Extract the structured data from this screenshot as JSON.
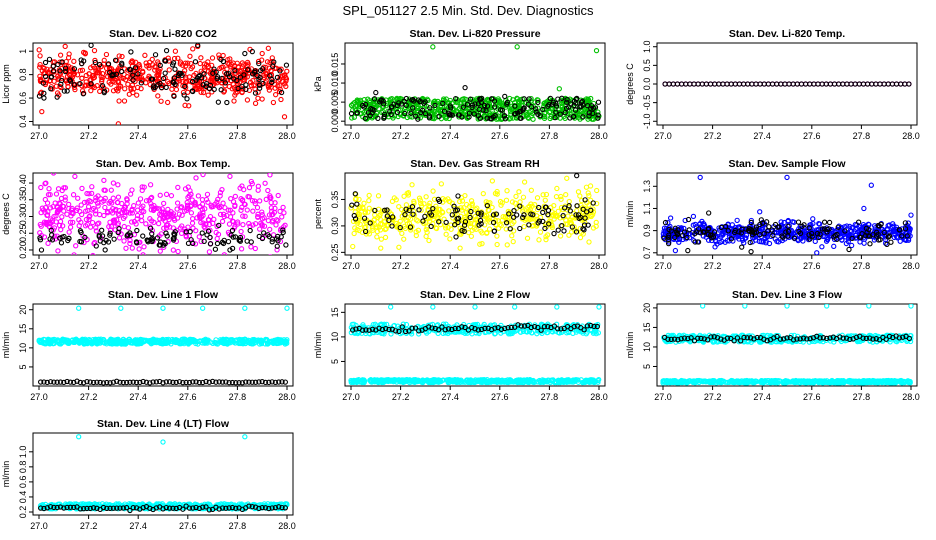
{
  "figure": {
    "title": "SPL_051127  2.5 Min. Std. Dev. Diagnostics"
  },
  "chart_data": [
    {
      "id": "co2",
      "type": "scatter",
      "title": "Stan. Dev. Li-820 CO2",
      "ylabel": "Licor ppm",
      "xlabel": "",
      "xlim": [
        27.0,
        28.0
      ],
      "ylim": [
        0.37,
        1.07
      ],
      "xticks": [
        27.0,
        27.2,
        27.4,
        27.6,
        27.8,
        28.0
      ],
      "yticks": [
        0.4,
        0.6,
        0.8,
        1.0
      ],
      "series": [
        {
          "color": "#ff0000",
          "pattern": "noisy",
          "n": 560,
          "mean": 0.78,
          "spread": 0.085,
          "outliers": [
            [
              27.32,
              0.38
            ],
            [
              27.62,
              1.02
            ],
            [
              27.64,
              1.04
            ],
            [
              27.99,
              0.44
            ],
            [
              27.18,
              0.99
            ],
            [
              27.55,
              1.0
            ],
            [
              27.9,
              0.98
            ]
          ]
        },
        {
          "color": "#000000",
          "pattern": "noisy",
          "n": 150,
          "mean": 0.78,
          "spread": 0.09,
          "outliers": [
            [
              27.21,
              1.05
            ],
            [
              27.64,
              1.05
            ],
            [
              27.47,
              0.97
            ],
            [
              27.83,
              0.98
            ],
            [
              27.02,
              0.6
            ]
          ]
        }
      ]
    },
    {
      "id": "pressure",
      "type": "scatter",
      "title": "Stan. Dev. Li-820 Pressure",
      "ylabel": "kPa",
      "xlabel": "",
      "xlim": [
        27.0,
        28.0
      ],
      "ylim": [
        -0.001,
        0.0205
      ],
      "xticks": [
        27.0,
        27.2,
        27.4,
        27.6,
        27.8,
        28.0
      ],
      "yticks": [
        "0.000",
        "0.005",
        "0.010",
        "0.015"
      ],
      "series": [
        {
          "color": "#00c000",
          "pattern": "band",
          "n": 600,
          "low": 0.0005,
          "high": 0.006,
          "outliers": [
            [
              27.33,
              0.0195
            ],
            [
              27.67,
              0.0195
            ],
            [
              27.99,
              0.0185
            ],
            [
              27.84,
              0.0085
            ]
          ]
        },
        {
          "color": "#000000",
          "pattern": "band",
          "n": 170,
          "low": 0.0005,
          "high": 0.006,
          "outliers": [
            [
              27.1,
              0.0075
            ],
            [
              27.46,
              0.0088
            ],
            [
              27.62,
              0.0065
            ],
            [
              27.85,
              0.006
            ]
          ]
        }
      ]
    },
    {
      "id": "temp",
      "type": "scatter",
      "title": "Stan. Dev. Li-820 Temp.",
      "ylabel": "degrees C",
      "xlabel": "",
      "xlim": [
        27.0,
        28.0
      ],
      "ylim": [
        -1.1,
        1.1
      ],
      "xticks": [
        27.0,
        27.2,
        27.4,
        27.6,
        27.8,
        28.0
      ],
      "yticks": [
        "-1.0",
        "-0.5",
        "0.0",
        "0.5",
        "1.0"
      ],
      "series": [
        {
          "color": "#ff00ff",
          "pattern": "constant",
          "n": 60,
          "value": 0.0,
          "outliers": []
        },
        {
          "color": "#000000",
          "pattern": "constant",
          "n": 60,
          "value": 0.0,
          "outliers": []
        }
      ]
    },
    {
      "id": "ambbox",
      "type": "scatter",
      "title": "Stan. Dev. Amb. Box Temp.",
      "ylabel": "degrees C",
      "xlabel": "",
      "xlim": [
        27.0,
        28.0
      ],
      "ylim": [
        0.185,
        0.43
      ],
      "xticks": [
        27.0,
        27.2,
        27.4,
        27.6,
        27.8,
        28.0
      ],
      "yticks": [
        "0.20",
        "0.25",
        "0.30",
        "0.35",
        "0.40"
      ],
      "series": [
        {
          "color": "#ff00ff",
          "pattern": "noisy",
          "n": 520,
          "mean": 0.305,
          "spread": 0.05,
          "outliers": [
            [
              27.77,
              0.42
            ],
            [
              27.45,
              0.395
            ],
            [
              27.3,
              0.4
            ],
            [
              27.86,
              0.398
            ]
          ]
        },
        {
          "color": "#000000",
          "pattern": "noisy",
          "n": 110,
          "mean": 0.232,
          "spread": 0.014,
          "outliers": [
            [
              27.77,
              0.2
            ],
            [
              27.01,
              0.2
            ],
            [
              27.45,
              0.265
            ]
          ]
        }
      ]
    },
    {
      "id": "rh",
      "type": "scatter",
      "title": "Stan. Dev. Gas Stream RH",
      "ylabel": "percent",
      "xlabel": "",
      "xlim": [
        27.0,
        28.0
      ],
      "ylim": [
        0.245,
        0.4
      ],
      "xticks": [
        27.0,
        27.2,
        27.4,
        27.6,
        27.8,
        28.0
      ],
      "yticks": [
        "0.25",
        "0.30",
        "0.35"
      ],
      "series": [
        {
          "color": "#ffff00",
          "pattern": "noisy",
          "n": 500,
          "mean": 0.318,
          "spread": 0.022,
          "outliers": [
            [
              27.12,
              0.258
            ],
            [
              27.44,
              0.258
            ],
            [
              27.57,
              0.385
            ],
            [
              27.87,
              0.39
            ],
            [
              27.7,
              0.383
            ]
          ]
        },
        {
          "color": "#000000",
          "pattern": "noisy",
          "n": 110,
          "mean": 0.318,
          "spread": 0.018,
          "outliers": [
            [
              27.91,
              0.395
            ]
          ]
        }
      ]
    },
    {
      "id": "sampleflow",
      "type": "scatter",
      "title": "Stan. Dev. Sample Flow",
      "ylabel": "ml/min",
      "xlabel": "",
      "xlim": [
        27.0,
        28.0
      ],
      "ylim": [
        0.68,
        1.42
      ],
      "xticks": [
        27.0,
        27.2,
        27.4,
        27.6,
        27.8,
        28.0
      ],
      "yticks": [
        "0.7",
        "0.9",
        "1.1",
        "1.3"
      ],
      "series": [
        {
          "color": "#0000ff",
          "pattern": "noisy",
          "n": 560,
          "mean": 0.88,
          "spread": 0.045,
          "outliers": [
            [
              27.15,
              1.38
            ],
            [
              27.5,
              1.38
            ],
            [
              27.84,
              1.31
            ],
            [
              27.81,
              1.1
            ],
            [
              27.39,
              1.07
            ],
            [
              27.05,
              0.72
            ],
            [
              27.62,
              0.7
            ],
            [
              28.0,
              1.04
            ]
          ]
        },
        {
          "color": "#000000",
          "pattern": "noisy",
          "n": 140,
          "mean": 0.88,
          "spread": 0.05,
          "outliers": [
            [
              27.75,
              0.73
            ],
            [
              27.1,
              0.72
            ]
          ]
        }
      ]
    },
    {
      "id": "line1",
      "type": "scatter",
      "title": "Stan. Dev. Line 1 Flow",
      "ylabel": "ml/min",
      "xlabel": "",
      "xlim": [
        27.0,
        28.0
      ],
      "ylim": [
        0.0,
        21.5
      ],
      "xticks": [
        27.0,
        27.2,
        27.4,
        27.6,
        27.8,
        28.0
      ],
      "yticks": [
        5,
        10,
        15,
        20
      ],
      "series": [
        {
          "color": "#00ffff",
          "pattern": "band",
          "n": 520,
          "low": 11.0,
          "high": 12.3,
          "outliers": [
            [
              27.16,
              20.4
            ],
            [
              27.33,
              20.4
            ],
            [
              27.5,
              20.4
            ],
            [
              27.66,
              20.4
            ],
            [
              27.83,
              20.4
            ],
            [
              28.0,
              20.4
            ]
          ]
        },
        {
          "color": "#000000",
          "pattern": "regular",
          "n": 75,
          "value": 1.0,
          "jitter": 0.1,
          "outliers": []
        }
      ]
    },
    {
      "id": "line2",
      "type": "scatter",
      "title": "Stan. Dev. Line 2 Flow",
      "ylabel": "ml/min",
      "xlabel": "",
      "xlim": [
        27.0,
        28.0
      ],
      "ylim": [
        0.0,
        16.7
      ],
      "xticks": [
        27.0,
        27.2,
        27.4,
        27.6,
        27.8,
        28.0
      ],
      "yticks": [
        5,
        10,
        15
      ],
      "series": [
        {
          "color": "#00ffff",
          "pattern": "band",
          "n": 500,
          "low": 0.7,
          "high": 1.3,
          "outliers": [
            [
              27.16,
              16.1
            ],
            [
              27.33,
              16.1
            ],
            [
              27.5,
              16.1
            ],
            [
              27.66,
              16.1
            ],
            [
              27.83,
              16.1
            ],
            [
              28.0,
              16.1
            ]
          ]
        },
        {
          "color": "#00ffff",
          "pattern": "band",
          "n": 360,
          "low": 10.6,
          "high": 12.6,
          "outliers": []
        },
        {
          "color": "#000000",
          "pattern": "regular",
          "n": 75,
          "value": 11.4,
          "trend": 0.7,
          "jitter": 0.25,
          "outliers": []
        }
      ]
    },
    {
      "id": "line3",
      "type": "scatter",
      "title": "Stan. Dev. Line 3 Flow",
      "ylabel": "ml/min",
      "xlabel": "",
      "xlim": [
        27.0,
        28.0
      ],
      "ylim": [
        0.0,
        21.0
      ],
      "xticks": [
        27.0,
        27.2,
        27.4,
        27.6,
        27.8,
        28.0
      ],
      "yticks": [
        5,
        10,
        15,
        20
      ],
      "series": [
        {
          "color": "#00ffff",
          "pattern": "band",
          "n": 500,
          "low": 0.8,
          "high": 1.4,
          "outliers": [
            [
              27.16,
              20.5
            ],
            [
              27.33,
              20.5
            ],
            [
              27.5,
              20.5
            ],
            [
              27.66,
              20.5
            ],
            [
              27.83,
              20.5
            ],
            [
              28.0,
              20.5
            ]
          ]
        },
        {
          "color": "#00ffff",
          "pattern": "band",
          "n": 360,
          "low": 11.2,
          "high": 13.0,
          "outliers": []
        },
        {
          "color": "#000000",
          "pattern": "regular",
          "n": 75,
          "value": 12.0,
          "trend": 0.3,
          "jitter": 0.25,
          "outliers": []
        }
      ]
    },
    {
      "id": "line4",
      "type": "scatter",
      "title": "Stan. Dev. Line 4 (LT) Flow",
      "ylabel": "ml/min",
      "xlabel": "",
      "xlim": [
        27.0,
        28.0
      ],
      "ylim": [
        0.16,
        1.25
      ],
      "xticks": [
        27.0,
        27.2,
        27.4,
        27.6,
        27.8,
        28.0
      ],
      "yticks": [
        "0.2",
        "0.4",
        "0.6",
        "0.8",
        "1.0"
      ],
      "series": [
        {
          "color": "#00ffff",
          "pattern": "band",
          "n": 520,
          "low": 0.24,
          "high": 0.31,
          "outliers": [
            [
              27.16,
              1.2
            ],
            [
              27.5,
              1.13
            ],
            [
              27.83,
              1.2
            ]
          ]
        },
        {
          "color": "#000000",
          "pattern": "regular",
          "n": 75,
          "value": 0.255,
          "jitter": 0.012,
          "outliers": []
        }
      ]
    }
  ]
}
